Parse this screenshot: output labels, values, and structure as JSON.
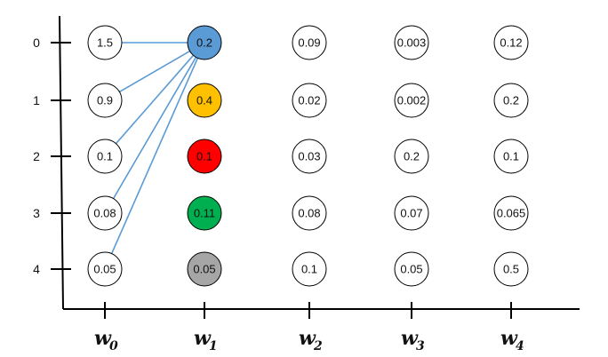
{
  "rows": [
    "0",
    "1",
    "2",
    "3",
    "4"
  ],
  "columns": [
    {
      "label": "w",
      "sub": "0"
    },
    {
      "label": "w",
      "sub": "1"
    },
    {
      "label": "w",
      "sub": "2"
    },
    {
      "label": "w",
      "sub": "3"
    },
    {
      "label": "w",
      "sub": "4"
    }
  ],
  "grid": [
    [
      "1.5",
      "0.2",
      "0.09",
      "0.003",
      "0.12"
    ],
    [
      "0.9",
      "0.4",
      "0.02",
      "0.002",
      "0.2"
    ],
    [
      "0.1",
      "0.1",
      "0.03",
      "0.2",
      "0.1"
    ],
    [
      "0.08",
      "0.11",
      "0.08",
      "0.07",
      "0.065"
    ],
    [
      "0.05",
      "0.05",
      "0.1",
      "0.05",
      "0.5"
    ]
  ],
  "highlight_fills": {
    "w1_row0": "#5b9bd5",
    "w1_row1": "#ffc000",
    "w1_row2": "#ff0000",
    "w1_row3": "#00b050",
    "w1_row4": "#a6a6a6"
  },
  "edge_color": "#5b9bd5",
  "edges": [
    {
      "from": "w0_row0",
      "to": "w1_row0"
    },
    {
      "from": "w0_row1",
      "to": "w1_row0"
    },
    {
      "from": "w0_row2",
      "to": "w1_row0"
    },
    {
      "from": "w0_row3",
      "to": "w1_row0"
    },
    {
      "from": "w0_row4",
      "to": "w1_row0"
    }
  ]
}
